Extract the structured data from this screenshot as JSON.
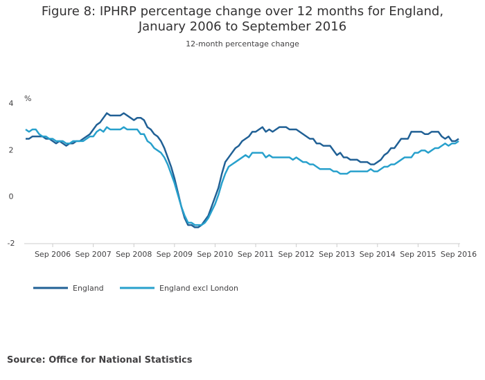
{
  "chart_data": {
    "type": "line",
    "title": "Figure 8: IPHRP percentage change over 12 months for England, January 2006 to September 2016",
    "subtitle": "12-month percentage change",
    "y_label": "%",
    "source": "Source: Office for National Statistics",
    "categories": [
      null,
      null,
      null,
      null,
      null,
      null,
      null,
      null,
      "Sep 2006",
      null,
      null,
      null,
      null,
      null,
      null,
      null,
      null,
      null,
      null,
      null,
      "Sep 2007",
      null,
      null,
      null,
      null,
      null,
      null,
      null,
      null,
      null,
      null,
      null,
      "Sep 2008",
      null,
      null,
      null,
      null,
      null,
      null,
      null,
      null,
      null,
      null,
      null,
      "Sep 2009",
      null,
      null,
      null,
      null,
      null,
      null,
      null,
      null,
      null,
      null,
      null,
      "Sep 2010",
      null,
      null,
      null,
      null,
      null,
      null,
      null,
      null,
      null,
      null,
      null,
      "Sep 2011",
      null,
      null,
      null,
      null,
      null,
      null,
      null,
      null,
      null,
      null,
      null,
      "Sep 2012",
      null,
      null,
      null,
      null,
      null,
      null,
      null,
      null,
      null,
      null,
      null,
      "Sep 2013",
      null,
      null,
      null,
      null,
      null,
      null,
      null,
      null,
      null,
      null,
      null,
      "Sep 2014",
      null,
      null,
      null,
      null,
      null,
      null,
      null,
      null,
      null,
      null,
      null,
      "Sep 2015",
      null,
      null,
      null,
      null,
      null,
      null,
      null,
      null,
      null,
      null,
      null,
      "Sep 2016"
    ],
    "series": [
      {
        "name": "England",
        "color": "#206095",
        "values": [
          2.5,
          2.5,
          2.6,
          2.6,
          2.6,
          2.6,
          2.5,
          2.5,
          2.4,
          2.3,
          2.4,
          2.3,
          2.2,
          2.3,
          2.3,
          2.4,
          2.4,
          2.5,
          2.6,
          2.7,
          2.9,
          3.1,
          3.2,
          3.4,
          3.6,
          3.5,
          3.5,
          3.5,
          3.5,
          3.6,
          3.5,
          3.4,
          3.3,
          3.4,
          3.4,
          3.3,
          3.0,
          2.9,
          2.7,
          2.6,
          2.4,
          2.1,
          1.7,
          1.3,
          0.8,
          0.2,
          -0.4,
          -0.9,
          -1.2,
          -1.2,
          -1.3,
          -1.3,
          -1.2,
          -1.0,
          -0.8,
          -0.4,
          0.0,
          0.4,
          1.0,
          1.5,
          1.7,
          1.9,
          2.1,
          2.2,
          2.4,
          2.5,
          2.6,
          2.8,
          2.8,
          2.9,
          3.0,
          2.8,
          2.9,
          2.8,
          2.9,
          3.0,
          3.0,
          3.0,
          2.9,
          2.9,
          2.9,
          2.8,
          2.7,
          2.6,
          2.5,
          2.5,
          2.3,
          2.3,
          2.2,
          2.2,
          2.2,
          2.0,
          1.8,
          1.9,
          1.7,
          1.7,
          1.6,
          1.6,
          1.6,
          1.5,
          1.5,
          1.5,
          1.4,
          1.4,
          1.5,
          1.6,
          1.8,
          1.9,
          2.1,
          2.1,
          2.3,
          2.5,
          2.5,
          2.5,
          2.8,
          2.8,
          2.8,
          2.8,
          2.7,
          2.7,
          2.8,
          2.8,
          2.8,
          2.6,
          2.5,
          2.6,
          2.4,
          2.4,
          2.5
        ]
      },
      {
        "name": "England excl London",
        "color": "#27a0cc",
        "values": [
          2.9,
          2.8,
          2.9,
          2.9,
          2.7,
          2.6,
          2.6,
          2.5,
          2.5,
          2.4,
          2.4,
          2.4,
          2.3,
          2.3,
          2.4,
          2.4,
          2.4,
          2.4,
          2.5,
          2.6,
          2.6,
          2.8,
          2.9,
          2.8,
          3.0,
          2.9,
          2.9,
          2.9,
          2.9,
          3.0,
          2.9,
          2.9,
          2.9,
          2.9,
          2.7,
          2.7,
          2.4,
          2.3,
          2.1,
          2.0,
          1.9,
          1.7,
          1.4,
          1.0,
          0.6,
          0.1,
          -0.4,
          -0.8,
          -1.1,
          -1.1,
          -1.2,
          -1.2,
          -1.2,
          -1.1,
          -0.9,
          -0.6,
          -0.3,
          0.1,
          0.6,
          1.0,
          1.3,
          1.4,
          1.5,
          1.6,
          1.7,
          1.8,
          1.7,
          1.9,
          1.9,
          1.9,
          1.9,
          1.7,
          1.8,
          1.7,
          1.7,
          1.7,
          1.7,
          1.7,
          1.7,
          1.6,
          1.7,
          1.6,
          1.5,
          1.5,
          1.4,
          1.4,
          1.3,
          1.2,
          1.2,
          1.2,
          1.2,
          1.1,
          1.1,
          1.0,
          1.0,
          1.0,
          1.1,
          1.1,
          1.1,
          1.1,
          1.1,
          1.1,
          1.2,
          1.1,
          1.1,
          1.2,
          1.3,
          1.3,
          1.4,
          1.4,
          1.5,
          1.6,
          1.7,
          1.7,
          1.7,
          1.9,
          1.9,
          2.0,
          2.0,
          1.9,
          2.0,
          2.1,
          2.1,
          2.2,
          2.3,
          2.2,
          2.3,
          2.3,
          2.4
        ]
      }
    ],
    "ylim": [
      -2,
      4
    ],
    "yticks": [
      -2,
      0,
      2,
      4
    ],
    "grid": false,
    "legend": "bottom"
  }
}
